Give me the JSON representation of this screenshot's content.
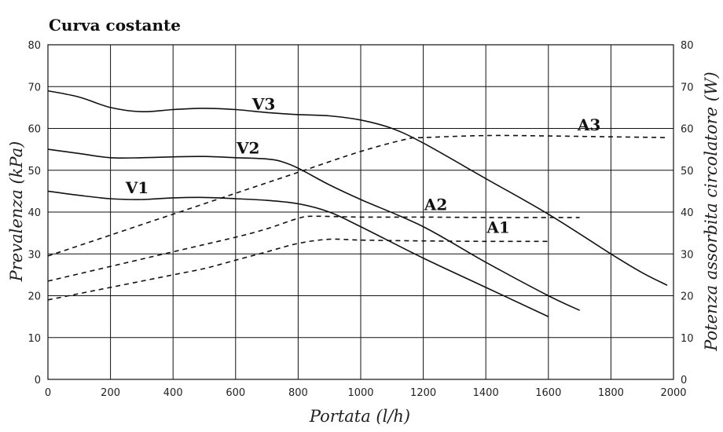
{
  "chart_data": {
    "type": "line",
    "title": "Curva costante",
    "xlabel": "Portata (l/h)",
    "ylabel": "Prevalenza (kPa)",
    "y2label": "Potenza assorbita circolatore (W)",
    "xlim": [
      0,
      2000
    ],
    "ylim": [
      0,
      80
    ],
    "y2lim": [
      0,
      80
    ],
    "x_ticks": [
      0,
      200,
      400,
      600,
      800,
      1000,
      1200,
      1400,
      1600,
      1800,
      2000
    ],
    "y_ticks": [
      0,
      10,
      20,
      30,
      40,
      50,
      60,
      70,
      80
    ],
    "y2_ticks": [
      0,
      10,
      20,
      30,
      40,
      50,
      60,
      70,
      80
    ],
    "grid": true,
    "series": [
      {
        "name": "V3",
        "axis": "left",
        "style": "solid",
        "points": [
          [
            0,
            69
          ],
          [
            100,
            67.5
          ],
          [
            200,
            65
          ],
          [
            300,
            64
          ],
          [
            400,
            64.5
          ],
          [
            500,
            64.8
          ],
          [
            600,
            64.5
          ],
          [
            700,
            63.8
          ],
          [
            800,
            63.3
          ],
          [
            900,
            63
          ],
          [
            1000,
            62
          ],
          [
            1100,
            60
          ],
          [
            1200,
            56.5
          ],
          [
            1400,
            48
          ],
          [
            1600,
            39.5
          ],
          [
            1800,
            30
          ],
          [
            1900,
            25.5
          ],
          [
            1980,
            22.5
          ]
        ]
      },
      {
        "name": "V2",
        "axis": "left",
        "style": "solid",
        "points": [
          [
            0,
            55
          ],
          [
            100,
            54
          ],
          [
            200,
            53
          ],
          [
            300,
            53
          ],
          [
            400,
            53.2
          ],
          [
            500,
            53.3
          ],
          [
            600,
            53
          ],
          [
            700,
            52.7
          ],
          [
            750,
            52
          ],
          [
            800,
            50.5
          ],
          [
            900,
            46.5
          ],
          [
            1000,
            43
          ],
          [
            1200,
            36.5
          ],
          [
            1400,
            28
          ],
          [
            1600,
            20
          ],
          [
            1700,
            16.5
          ]
        ]
      },
      {
        "name": "V1",
        "axis": "left",
        "style": "solid",
        "points": [
          [
            0,
            45
          ],
          [
            100,
            44
          ],
          [
            200,
            43.2
          ],
          [
            300,
            43
          ],
          [
            400,
            43.4
          ],
          [
            500,
            43.5
          ],
          [
            600,
            43.2
          ],
          [
            700,
            42.8
          ],
          [
            800,
            42
          ],
          [
            900,
            40
          ],
          [
            1000,
            36.5
          ],
          [
            1200,
            29
          ],
          [
            1400,
            22
          ],
          [
            1600,
            15
          ]
        ]
      },
      {
        "name": "A3",
        "axis": "right",
        "style": "dashed",
        "points": [
          [
            0,
            29.5
          ],
          [
            200,
            34.5
          ],
          [
            400,
            39.5
          ],
          [
            600,
            44.5
          ],
          [
            800,
            49.5
          ],
          [
            1000,
            54.5
          ],
          [
            1150,
            57.5
          ],
          [
            1200,
            57.8
          ],
          [
            1400,
            58.3
          ],
          [
            1600,
            58.2
          ],
          [
            1800,
            58
          ],
          [
            1980,
            57.8
          ]
        ]
      },
      {
        "name": "A2",
        "axis": "right",
        "style": "dashed",
        "points": [
          [
            0,
            23.5
          ],
          [
            200,
            27
          ],
          [
            400,
            30.5
          ],
          [
            600,
            34
          ],
          [
            700,
            36
          ],
          [
            800,
            38.5
          ],
          [
            850,
            39
          ],
          [
            1000,
            38.8
          ],
          [
            1200,
            38.8
          ],
          [
            1400,
            38.7
          ],
          [
            1600,
            38.7
          ],
          [
            1700,
            38.7
          ]
        ]
      },
      {
        "name": "A1",
        "axis": "right",
        "style": "dashed",
        "points": [
          [
            0,
            19
          ],
          [
            100,
            20.5
          ],
          [
            200,
            22
          ],
          [
            400,
            25
          ],
          [
            500,
            26.5
          ],
          [
            600,
            28.5
          ],
          [
            700,
            30.5
          ],
          [
            800,
            32.5
          ],
          [
            900,
            33.5
          ],
          [
            1000,
            33.3
          ],
          [
            1200,
            33.1
          ],
          [
            1400,
            33
          ],
          [
            1600,
            33
          ]
        ]
      }
    ],
    "annotations": [
      {
        "text": "V3",
        "x": 690,
        "y": 64.5
      },
      {
        "text": "V2",
        "x": 640,
        "y": 54
      },
      {
        "text": "V1",
        "x": 285,
        "y": 44.5
      },
      {
        "text": "A3",
        "x": 1730,
        "y": 59.5
      },
      {
        "text": "A2",
        "x": 1240,
        "y": 40.5
      },
      {
        "text": "A1",
        "x": 1440,
        "y": 35
      }
    ]
  }
}
